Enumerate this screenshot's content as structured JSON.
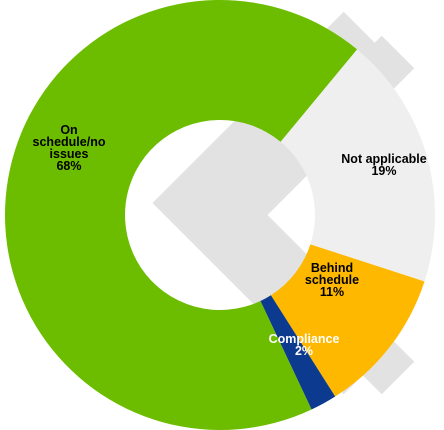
{
  "chart_data": {
    "type": "pie",
    "variant": "donut",
    "title": "",
    "legend": "none",
    "slices": [
      {
        "name": "Not applicable",
        "value": 19,
        "label_lines": [
          "Not applicable",
          "19%"
        ],
        "color": "#EFEFEF",
        "label_color": "#000000"
      },
      {
        "name": "Behind schedule",
        "value": 11,
        "label_lines": [
          "Behind",
          "schedule",
          "11%"
        ],
        "color": "#FFB800",
        "label_color": "#000000"
      },
      {
        "name": "Compliance",
        "value": 2,
        "label_lines": [
          "Compliance",
          "2%"
        ],
        "color": "#0B3A8F",
        "label_color": "#FFFFFF"
      },
      {
        "name": "On schedule/no issues",
        "value": 68,
        "label_lines": [
          "On",
          "schedule/no",
          "issues",
          "68%"
        ],
        "color": "#6CBD00",
        "label_color": "#000000"
      }
    ]
  },
  "background": {
    "watermark_color": "#E2E2E2"
  }
}
